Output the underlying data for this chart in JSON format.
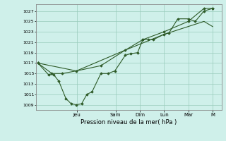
{
  "background_color": "#cff0ea",
  "grid_color": "#99ccbb",
  "line_color": "#2d5a27",
  "marker_color": "#2d5a27",
  "xlabel": "Pression niveau de la mer( hPa )",
  "ylim": [
    1008,
    1028
  ],
  "yticks": [
    1009,
    1011,
    1013,
    1015,
    1017,
    1019,
    1021,
    1023,
    1025,
    1027
  ],
  "day_labels": [
    "Jeu",
    "Sam",
    "Dim",
    "Lun",
    "Mar",
    "M"
  ],
  "day_positions": [
    0.222,
    0.444,
    0.583,
    0.722,
    0.861,
    1.0
  ],
  "xlim": [
    0.0,
    1.05
  ],
  "series1_x": [
    0.0,
    0.06,
    0.09,
    0.12,
    0.16,
    0.19,
    0.22,
    0.25,
    0.28,
    0.31,
    0.36,
    0.4,
    0.44,
    0.5,
    0.53,
    0.57,
    0.6,
    0.63,
    0.66,
    0.72,
    0.75,
    0.8,
    0.86,
    0.9,
    0.95,
    1.0
  ],
  "series1_y": [
    1017,
    1014.8,
    1014.8,
    1013.5,
    1010.2,
    1009.2,
    1009.0,
    1009.2,
    1011.0,
    1011.5,
    1015.0,
    1015.0,
    1015.5,
    1018.5,
    1018.8,
    1019.0,
    1021.5,
    1021.5,
    1021.5,
    1022.5,
    1022.8,
    1025.5,
    1025.5,
    1025.0,
    1027.0,
    1027.5
  ],
  "series2_x": [
    0.0,
    0.08,
    0.14,
    0.22,
    0.36,
    0.5,
    0.6,
    0.72,
    0.86,
    0.95,
    1.0
  ],
  "series2_y": [
    1017,
    1015.0,
    1015.0,
    1015.5,
    1016.5,
    1019.5,
    1021.5,
    1023.0,
    1025.0,
    1027.5,
    1027.5
  ],
  "series3_x": [
    0.0,
    0.22,
    0.5,
    0.72,
    0.95,
    1.0
  ],
  "series3_y": [
    1017,
    1015.5,
    1019.5,
    1022.5,
    1025.0,
    1024.0
  ]
}
